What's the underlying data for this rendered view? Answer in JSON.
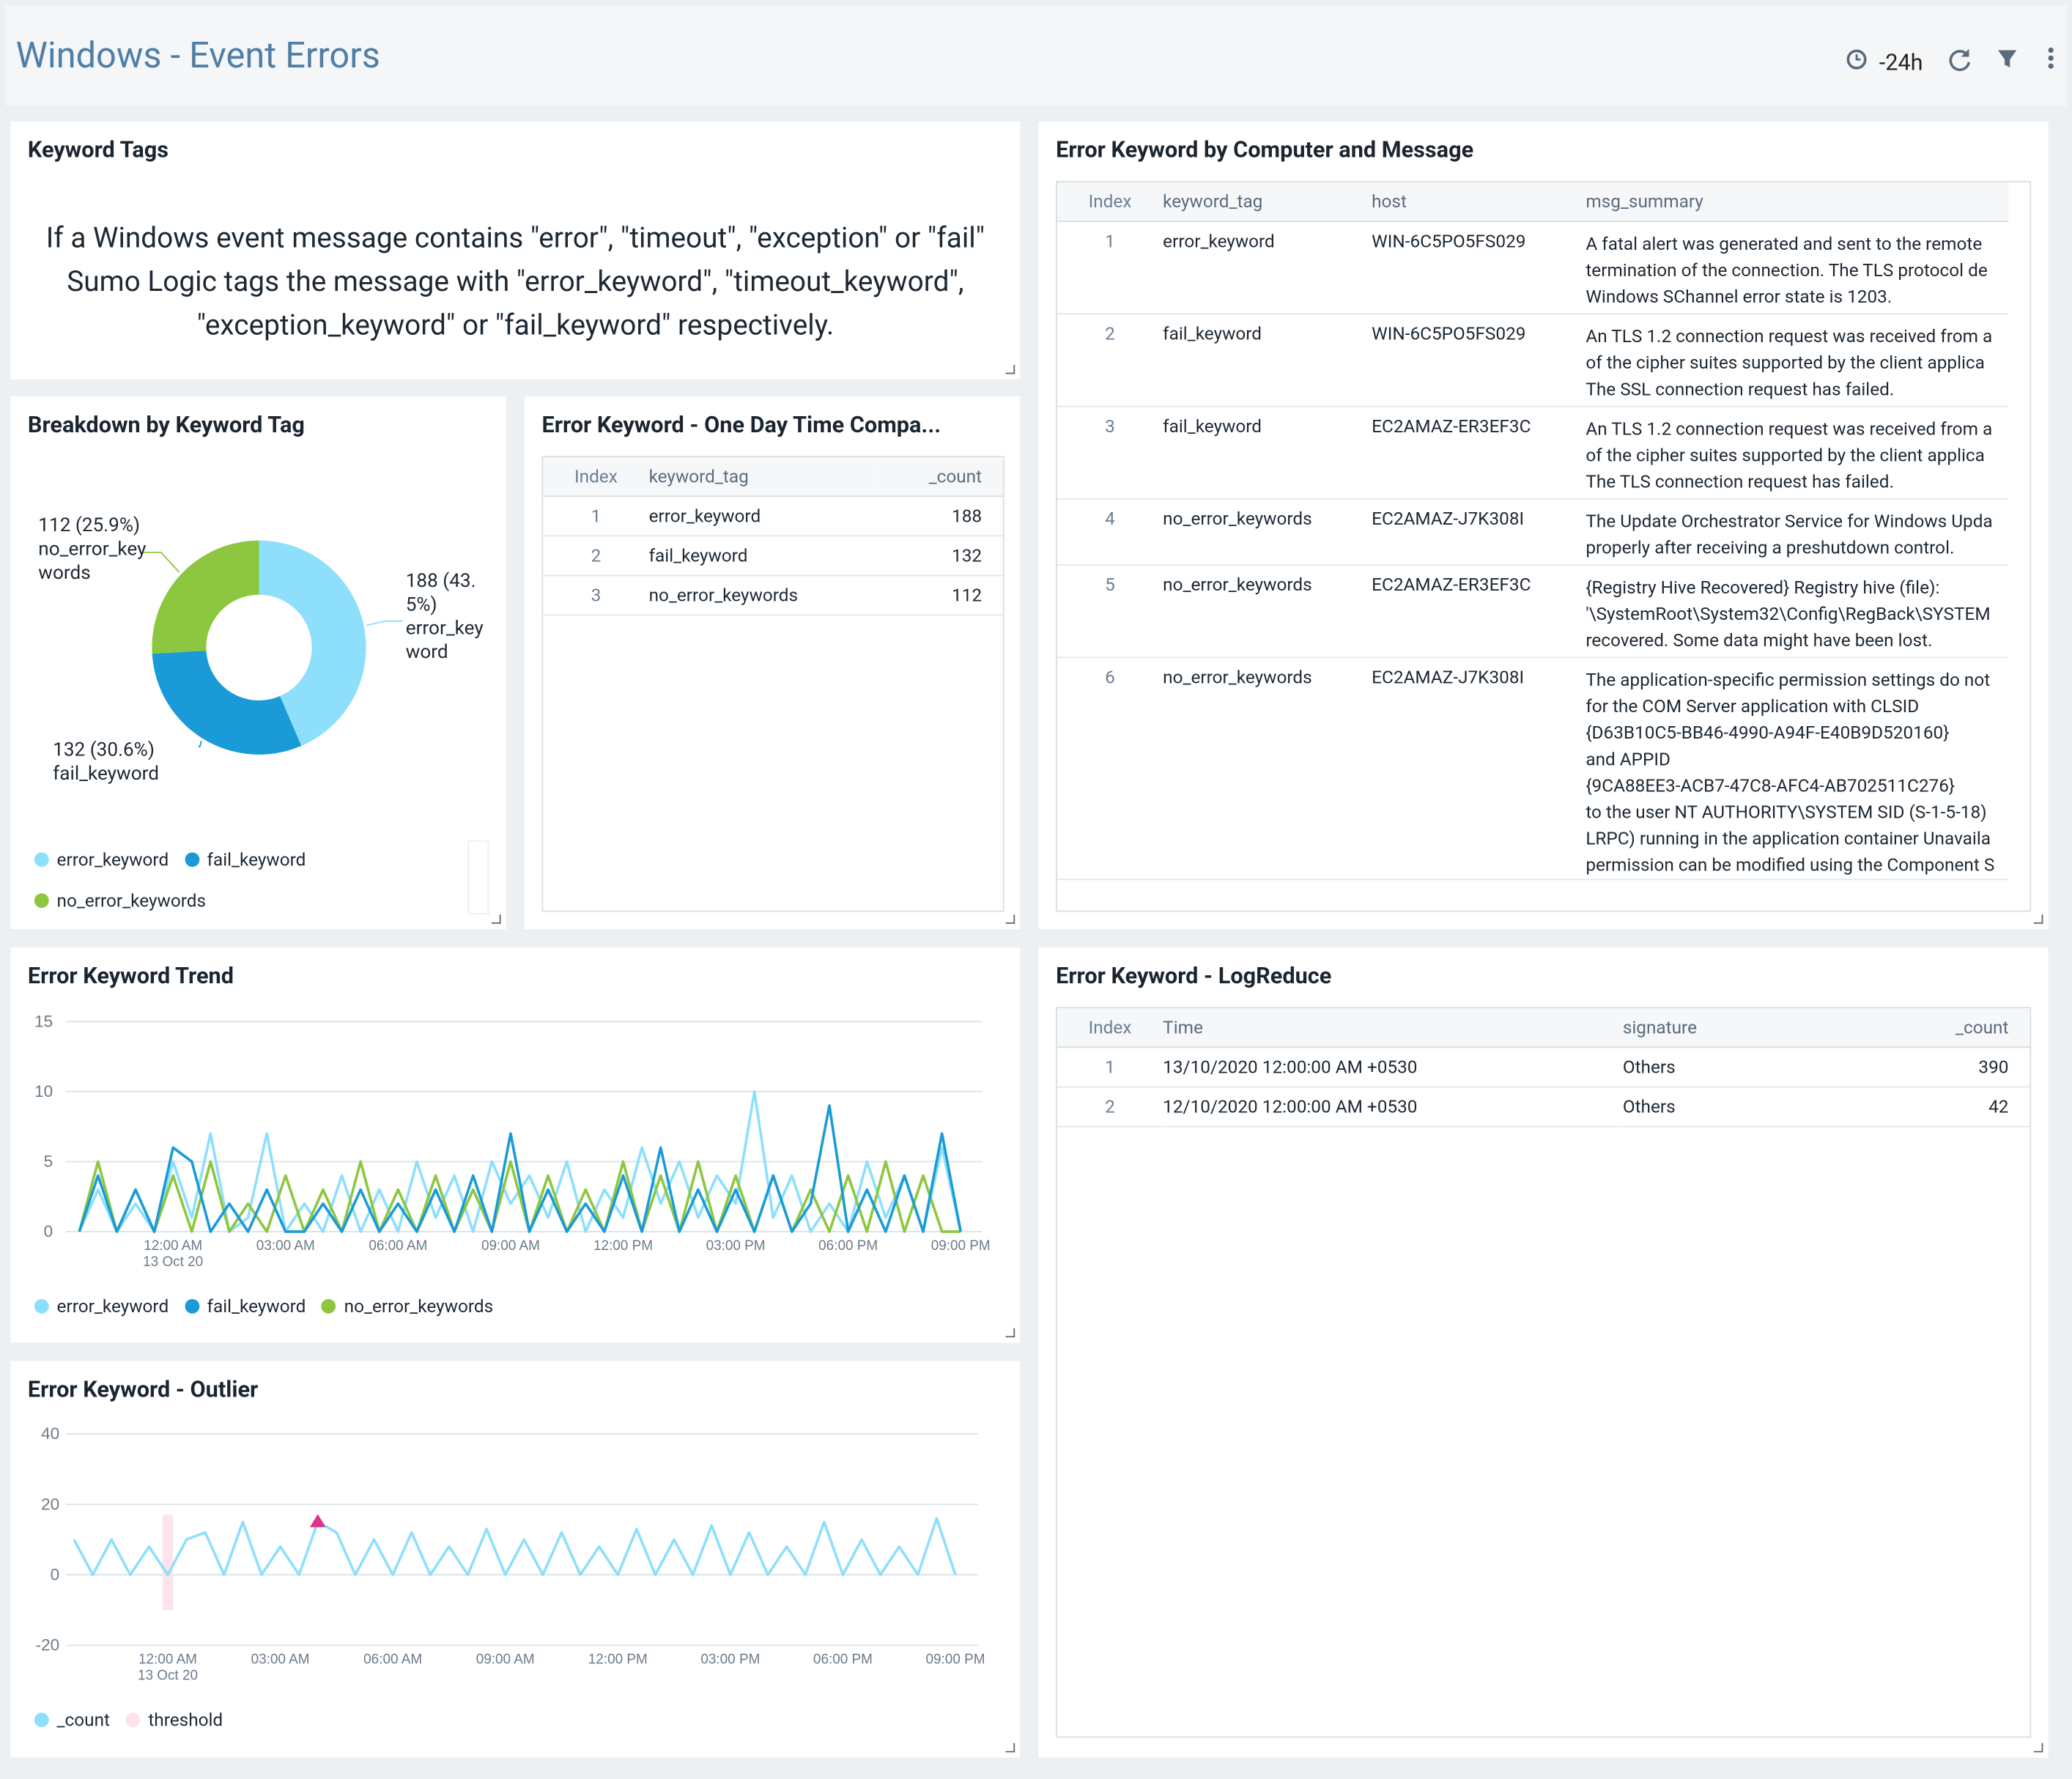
{
  "header": {
    "title": "Windows - Event Errors",
    "time_range": "-24h"
  },
  "keyword_tags": {
    "title": "Keyword Tags",
    "text": "If a Windows event message contains \"error\", \"timeout\", \"exception\" or \"fail\" Sumo Logic tags the message with \"error_keyword\", \"timeout_keyword\", \"exception_keyword\" or \"fail_keyword\" respectively."
  },
  "one_day_table": {
    "title": "Error Keyword - One Day Time Compa...",
    "columns": [
      "Index",
      "keyword_tag",
      "_count"
    ],
    "rows": [
      [
        1,
        "error_keyword",
        188
      ],
      [
        2,
        "fail_keyword",
        132
      ],
      [
        3,
        "no_error_keywords",
        112
      ]
    ]
  },
  "computer_table": {
    "title": "Error Keyword by Computer and Message",
    "columns": [
      "Index",
      "keyword_tag",
      "host",
      "msg_summary"
    ],
    "rows": [
      [
        1,
        "error_keyword",
        "WIN-6C5PO5FS029",
        [
          "A fatal alert was generated and sent to the remote",
          "termination of the connection. The TLS protocol de",
          "Windows SChannel error state is 1203."
        ]
      ],
      [
        2,
        "fail_keyword",
        "WIN-6C5PO5FS029",
        [
          "An TLS 1.2 connection request was received from a",
          "of the cipher suites supported by the client applica",
          "The SSL connection request has failed."
        ]
      ],
      [
        3,
        "fail_keyword",
        "EC2AMAZ-ER3EF3C",
        [
          "An TLS 1.2 connection request was received from a",
          "of the cipher suites supported by the client applica",
          "The TLS connection request has failed."
        ]
      ],
      [
        4,
        "no_error_keywords",
        "EC2AMAZ-J7K308I",
        [
          "The Update Orchestrator Service for Windows Upda",
          "properly after receiving a preshutdown control."
        ]
      ],
      [
        5,
        "no_error_keywords",
        "EC2AMAZ-ER3EF3C",
        [
          "{Registry Hive Recovered} Registry hive (file):",
          "'\\SystemRoot\\System32\\Config\\RegBack\\SYSTEM",
          "recovered. Some data might have been lost."
        ]
      ],
      [
        6,
        "no_error_keywords",
        "EC2AMAZ-J7K308I",
        [
          "The application-specific permission settings do not",
          "for the COM Server application with CLSID",
          "{D63B10C5-BB46-4990-A94F-E40B9D520160}",
          "and APPID",
          "{9CA88EE3-ACB7-47C8-AFC4-AB702511C276}",
          "to the user NT AUTHORITY\\SYSTEM SID (S-1-5-18)",
          "LRPC) running in the application container Unavaila",
          "permission can be modified using the Component S"
        ]
      ]
    ]
  },
  "logreduce_table": {
    "title": "Error Keyword - LogReduce",
    "columns": [
      "Index",
      "Time",
      "signature",
      "_count"
    ],
    "rows": [
      [
        1,
        "13/10/2020 12:00:00 AM +0530",
        "Others",
        390
      ],
      [
        2,
        "12/10/2020 12:00:00 AM +0530",
        "Others",
        42
      ]
    ]
  },
  "chart_data": [
    {
      "type": "pie",
      "title": "Breakdown by Keyword Tag",
      "categories": [
        "error_keyword",
        "fail_keyword",
        "no_error_keywords"
      ],
      "values": [
        188,
        132,
        112
      ],
      "value_labels": [
        "188 (43.5%)",
        "132 (30.6%)",
        "112 (25.9%)"
      ],
      "colors": [
        "#8ddffc",
        "#1a9bd7",
        "#8dc63f"
      ],
      "donut": true
    },
    {
      "type": "line",
      "title": "Error Keyword Trend",
      "categories": [
        null,
        null,
        null,
        null,
        null,
        "12:00 AM",
        null,
        null,
        null,
        null,
        null,
        "03:00 AM",
        null,
        null,
        null,
        null,
        null,
        "06:00 AM",
        null,
        null,
        null,
        null,
        null,
        "09:00 AM",
        null,
        null,
        null,
        null,
        null,
        "12:00 PM",
        null,
        null,
        null,
        null,
        null,
        "03:00 PM",
        null,
        null,
        null,
        null,
        null,
        "06:00 PM",
        null,
        null,
        null,
        null,
        null,
        "09:00 PM"
      ],
      "x_date_label": "13 Oct 20",
      "series": [
        {
          "name": "error_keyword",
          "color": "#8ddffc",
          "values": [
            0,
            3,
            0,
            2,
            0,
            5,
            1,
            7,
            0,
            1,
            7,
            0,
            2,
            0,
            4,
            0,
            3,
            0,
            5,
            1,
            4,
            0,
            5,
            2,
            4,
            1,
            5,
            0,
            3,
            1,
            6,
            2,
            5,
            1,
            4,
            2,
            10,
            1,
            4,
            0,
            2,
            0,
            5,
            1,
            4,
            0,
            6,
            0
          ]
        },
        {
          "name": "fail_keyword",
          "color": "#1a9bd7",
          "values": [
            0,
            4,
            0,
            3,
            0,
            6,
            5,
            0,
            2,
            0,
            3,
            0,
            0,
            2,
            0,
            3,
            0,
            2,
            0,
            3,
            0,
            4,
            0,
            7,
            0,
            3,
            0,
            2,
            0,
            4,
            0,
            6,
            0,
            3,
            0,
            3,
            0,
            4,
            0,
            2,
            9,
            0,
            3,
            0,
            4,
            0,
            7,
            0
          ]
        },
        {
          "name": "no_error_keywords",
          "color": "#8dc63f",
          "values": [
            0,
            5,
            0,
            3,
            0,
            4,
            0,
            5,
            0,
            2,
            0,
            4,
            0,
            3,
            0,
            5,
            0,
            3,
            0,
            4,
            0,
            3,
            0,
            5,
            0,
            4,
            0,
            3,
            0,
            5,
            0,
            4,
            0,
            5,
            0,
            4,
            0,
            4,
            0,
            3,
            0,
            4,
            0,
            5,
            0,
            4,
            0,
            0
          ]
        }
      ],
      "ylim": [
        0,
        15
      ],
      "yticks": [
        0,
        5,
        10,
        15
      ],
      "grid": true
    },
    {
      "type": "outlier",
      "title": "Error Keyword - Outlier",
      "categories": [
        null,
        null,
        null,
        null,
        null,
        "12:00 AM",
        null,
        null,
        null,
        null,
        null,
        "03:00 AM",
        null,
        null,
        null,
        null,
        null,
        "06:00 AM",
        null,
        null,
        null,
        null,
        null,
        "09:00 AM",
        null,
        null,
        null,
        null,
        null,
        "12:00 PM",
        null,
        null,
        null,
        null,
        null,
        "03:00 PM",
        null,
        null,
        null,
        null,
        null,
        "06:00 PM",
        null,
        null,
        null,
        null,
        null,
        "09:00 PM"
      ],
      "x_date_label": "13 Oct 20",
      "series": [
        {
          "name": "_count",
          "color": "#8ddffc",
          "values": [
            10,
            0,
            10,
            0,
            8,
            0,
            10,
            12,
            0,
            15,
            0,
            8,
            0,
            15,
            12,
            0,
            10,
            0,
            12,
            0,
            8,
            0,
            13,
            0,
            10,
            0,
            12,
            0,
            8,
            0,
            13,
            0,
            10,
            0,
            14,
            0,
            12,
            0,
            8,
            0,
            15,
            0,
            10,
            0,
            8,
            0,
            16,
            0
          ]
        },
        {
          "name": "threshold",
          "color": "#fde3ea",
          "upper": [
            null,
            null,
            null,
            null,
            null,
            17,
            null,
            null,
            null,
            null,
            null,
            null,
            null,
            null,
            null,
            null,
            null,
            null,
            null,
            null,
            null,
            null,
            null,
            null,
            null,
            null,
            null,
            null,
            null,
            null,
            null,
            null,
            null,
            null,
            null,
            null,
            null,
            null,
            null,
            null,
            null,
            null,
            null,
            null,
            null,
            null,
            null,
            null
          ],
          "lower": [
            null,
            null,
            null,
            null,
            null,
            -10,
            null,
            null,
            null,
            null,
            null,
            null,
            null,
            null,
            null,
            null,
            null,
            null,
            null,
            null,
            null,
            null,
            null,
            null,
            null,
            null,
            null,
            null,
            null,
            null,
            null,
            null,
            null,
            null,
            null,
            null,
            null,
            null,
            null,
            null,
            null,
            null,
            null,
            null,
            null,
            null,
            null,
            null
          ]
        }
      ],
      "outliers": [
        null,
        null,
        null,
        null,
        null,
        null,
        null,
        null,
        null,
        null,
        null,
        null,
        null,
        15,
        null,
        null,
        null,
        null,
        null,
        null,
        null,
        null,
        null,
        null,
        null,
        null,
        null,
        null,
        null,
        null,
        null,
        null,
        null,
        null,
        null,
        null,
        null,
        null,
        null,
        null,
        null,
        null,
        null,
        null,
        null,
        null,
        null,
        null
      ],
      "outlier_color": "#e0338e",
      "ylim": [
        -20,
        40
      ],
      "yticks": [
        -20,
        0,
        20,
        40
      ],
      "grid": true
    }
  ]
}
